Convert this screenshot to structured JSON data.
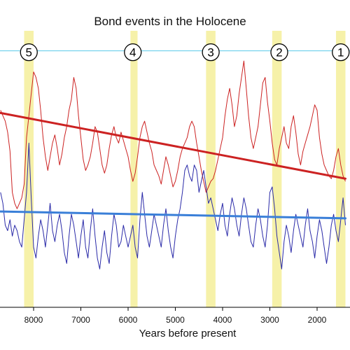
{
  "chart_data": {
    "type": "line",
    "title": "Bond events in the Holocene",
    "xlabel": "Years before present",
    "ylabel": "",
    "x_reversed": true,
    "xlim": [
      8700,
      1400
    ],
    "ylim": [
      0,
      1
    ],
    "x_ticks": [
      8000,
      7000,
      6000,
      5000,
      4000,
      3000,
      2000
    ],
    "x_tick_labels": [
      "8000",
      "7000",
      "6000",
      "5000",
      "4000",
      "3000",
      "2000"
    ],
    "grid": false,
    "legend": "none",
    "events": [
      {
        "label": "5",
        "x": 8100,
        "band": [
          8200,
          8000
        ]
      },
      {
        "label": "4",
        "x": 5900,
        "band": [
          5950,
          5800
        ]
      },
      {
        "label": "3",
        "x": 4250,
        "band": [
          4350,
          4150
        ]
      },
      {
        "label": "2",
        "x": 2800,
        "band": [
          2950,
          2750
        ]
      },
      {
        "label": "1",
        "x": 1500,
        "band": [
          1600,
          1400
        ]
      }
    ],
    "reference_line": {
      "y": 0.937,
      "color": "#58c8e8"
    },
    "series": [
      {
        "color": "#cc2222",
        "x": [
          8700,
          8650,
          8600,
          8550,
          8500,
          8450,
          8400,
          8350,
          8300,
          8250,
          8200,
          8150,
          8100,
          8050,
          8000,
          7950,
          7900,
          7850,
          7800,
          7750,
          7700,
          7650,
          7600,
          7550,
          7500,
          7450,
          7400,
          7350,
          7300,
          7250,
          7200,
          7150,
          7100,
          7050,
          7000,
          6950,
          6900,
          6850,
          6800,
          6750,
          6700,
          6650,
          6600,
          6550,
          6500,
          6450,
          6400,
          6350,
          6300,
          6250,
          6200,
          6150,
          6100,
          6050,
          6000,
          5950,
          5900,
          5850,
          5800,
          5750,
          5700,
          5650,
          5600,
          5550,
          5500,
          5450,
          5400,
          5350,
          5300,
          5250,
          5200,
          5150,
          5100,
          5050,
          5000,
          4950,
          4900,
          4850,
          4800,
          4750,
          4700,
          4650,
          4600,
          4550,
          4500,
          4450,
          4400,
          4350,
          4300,
          4250,
          4200,
          4150,
          4100,
          4050,
          4000,
          3950,
          3900,
          3850,
          3800,
          3750,
          3700,
          3650,
          3600,
          3550,
          3500,
          3450,
          3400,
          3350,
          3300,
          3250,
          3200,
          3150,
          3100,
          3050,
          3000,
          2950,
          2900,
          2850,
          2800,
          2750,
          2700,
          2650,
          2600,
          2550,
          2500,
          2450,
          2400,
          2350,
          2300,
          2250,
          2200,
          2150,
          2100,
          2050,
          2000,
          1950,
          1900,
          1850,
          1800,
          1750,
          1700,
          1650,
          1600,
          1550,
          1500,
          1450,
          1400
        ],
        "values": [
          0.72,
          0.7,
          0.68,
          0.64,
          0.57,
          0.42,
          0.38,
          0.36,
          0.38,
          0.4,
          0.45,
          0.62,
          0.7,
          0.78,
          0.86,
          0.84,
          0.8,
          0.72,
          0.62,
          0.55,
          0.5,
          0.55,
          0.6,
          0.63,
          0.58,
          0.52,
          0.56,
          0.62,
          0.66,
          0.72,
          0.76,
          0.84,
          0.8,
          0.7,
          0.62,
          0.54,
          0.5,
          0.52,
          0.55,
          0.6,
          0.66,
          0.64,
          0.58,
          0.52,
          0.49,
          0.52,
          0.58,
          0.63,
          0.66,
          0.62,
          0.6,
          0.64,
          0.61,
          0.58,
          0.55,
          0.5,
          0.46,
          0.49,
          0.55,
          0.62,
          0.66,
          0.68,
          0.64,
          0.6,
          0.57,
          0.52,
          0.5,
          0.48,
          0.45,
          0.5,
          0.55,
          0.52,
          0.48,
          0.44,
          0.46,
          0.5,
          0.55,
          0.58,
          0.6,
          0.62,
          0.66,
          0.68,
          0.66,
          0.6,
          0.55,
          0.5,
          0.46,
          0.42,
          0.44,
          0.46,
          0.47,
          0.5,
          0.54,
          0.58,
          0.62,
          0.7,
          0.76,
          0.8,
          0.74,
          0.66,
          0.7,
          0.78,
          0.84,
          0.9,
          0.8,
          0.7,
          0.62,
          0.58,
          0.62,
          0.66,
          0.74,
          0.82,
          0.84,
          0.75,
          0.68,
          0.6,
          0.54,
          0.52,
          0.58,
          0.62,
          0.66,
          0.6,
          0.58,
          0.66,
          0.7,
          0.64,
          0.56,
          0.52,
          0.57,
          0.6,
          0.63,
          0.66,
          0.7,
          0.74,
          0.72,
          0.62,
          0.56,
          0.52,
          0.5,
          0.48,
          0.47,
          0.5,
          0.55,
          0.58,
          0.52,
          0.48,
          0.46
        ]
      },
      {
        "color": "#2a2aa8",
        "x": [
          8700,
          8650,
          8600,
          8550,
          8500,
          8450,
          8400,
          8350,
          8300,
          8250,
          8200,
          8150,
          8100,
          8050,
          8000,
          7950,
          7900,
          7850,
          7800,
          7750,
          7700,
          7650,
          7600,
          7550,
          7500,
          7450,
          7400,
          7350,
          7300,
          7250,
          7200,
          7150,
          7100,
          7050,
          7000,
          6950,
          6900,
          6850,
          6800,
          6750,
          6700,
          6650,
          6600,
          6550,
          6500,
          6450,
          6400,
          6350,
          6300,
          6250,
          6200,
          6150,
          6100,
          6050,
          6000,
          5950,
          5900,
          5850,
          5800,
          5750,
          5700,
          5650,
          5600,
          5550,
          5500,
          5450,
          5400,
          5350,
          5300,
          5250,
          5200,
          5150,
          5100,
          5050,
          5000,
          4950,
          4900,
          4850,
          4800,
          4750,
          4700,
          4650,
          4600,
          4550,
          4500,
          4450,
          4400,
          4350,
          4300,
          4250,
          4200,
          4150,
          4100,
          4050,
          4000,
          3950,
          3900,
          3850,
          3800,
          3750,
          3700,
          3650,
          3600,
          3550,
          3500,
          3450,
          3400,
          3350,
          3300,
          3250,
          3200,
          3150,
          3100,
          3050,
          3000,
          2950,
          2900,
          2850,
          2800,
          2750,
          2700,
          2650,
          2600,
          2550,
          2500,
          2450,
          2400,
          2350,
          2300,
          2250,
          2200,
          2150,
          2100,
          2050,
          2000,
          1950,
          1900,
          1850,
          1800,
          1750,
          1700,
          1650,
          1600,
          1550,
          1500,
          1450,
          1400
        ],
        "values": [
          0.42,
          0.38,
          0.3,
          0.28,
          0.32,
          0.26,
          0.3,
          0.28,
          0.24,
          0.22,
          0.32,
          0.42,
          0.6,
          0.4,
          0.22,
          0.18,
          0.26,
          0.32,
          0.28,
          0.22,
          0.3,
          0.38,
          0.28,
          0.24,
          0.3,
          0.34,
          0.28,
          0.2,
          0.16,
          0.26,
          0.34,
          0.3,
          0.24,
          0.18,
          0.26,
          0.32,
          0.22,
          0.18,
          0.28,
          0.36,
          0.26,
          0.18,
          0.14,
          0.22,
          0.28,
          0.2,
          0.16,
          0.26,
          0.34,
          0.3,
          0.22,
          0.24,
          0.3,
          0.26,
          0.22,
          0.26,
          0.3,
          0.22,
          0.18,
          0.32,
          0.42,
          0.34,
          0.26,
          0.22,
          0.28,
          0.34,
          0.3,
          0.26,
          0.22,
          0.3,
          0.36,
          0.28,
          0.22,
          0.18,
          0.26,
          0.32,
          0.36,
          0.42,
          0.5,
          0.52,
          0.48,
          0.46,
          0.52,
          0.5,
          0.42,
          0.46,
          0.5,
          0.44,
          0.38,
          0.4,
          0.36,
          0.32,
          0.28,
          0.34,
          0.38,
          0.3,
          0.26,
          0.34,
          0.4,
          0.36,
          0.3,
          0.26,
          0.34,
          0.4,
          0.36,
          0.3,
          0.24,
          0.22,
          0.3,
          0.36,
          0.32,
          0.26,
          0.22,
          0.3,
          0.42,
          0.44,
          0.36,
          0.26,
          0.2,
          0.14,
          0.24,
          0.3,
          0.26,
          0.2,
          0.28,
          0.34,
          0.3,
          0.26,
          0.22,
          0.3,
          0.36,
          0.28,
          0.24,
          0.18,
          0.26,
          0.32,
          0.28,
          0.22,
          0.16,
          0.22,
          0.3,
          0.34,
          0.28,
          0.24,
          0.32,
          0.4,
          0.3
        ]
      }
    ],
    "trends": [
      {
        "color": "#cc2222",
        "x": [
          8700,
          1400
        ],
        "values": [
          0.71,
          0.47
        ]
      },
      {
        "color": "#3a7fd8",
        "x": [
          8700,
          1400
        ],
        "values": [
          0.35,
          0.325
        ]
      }
    ]
  }
}
